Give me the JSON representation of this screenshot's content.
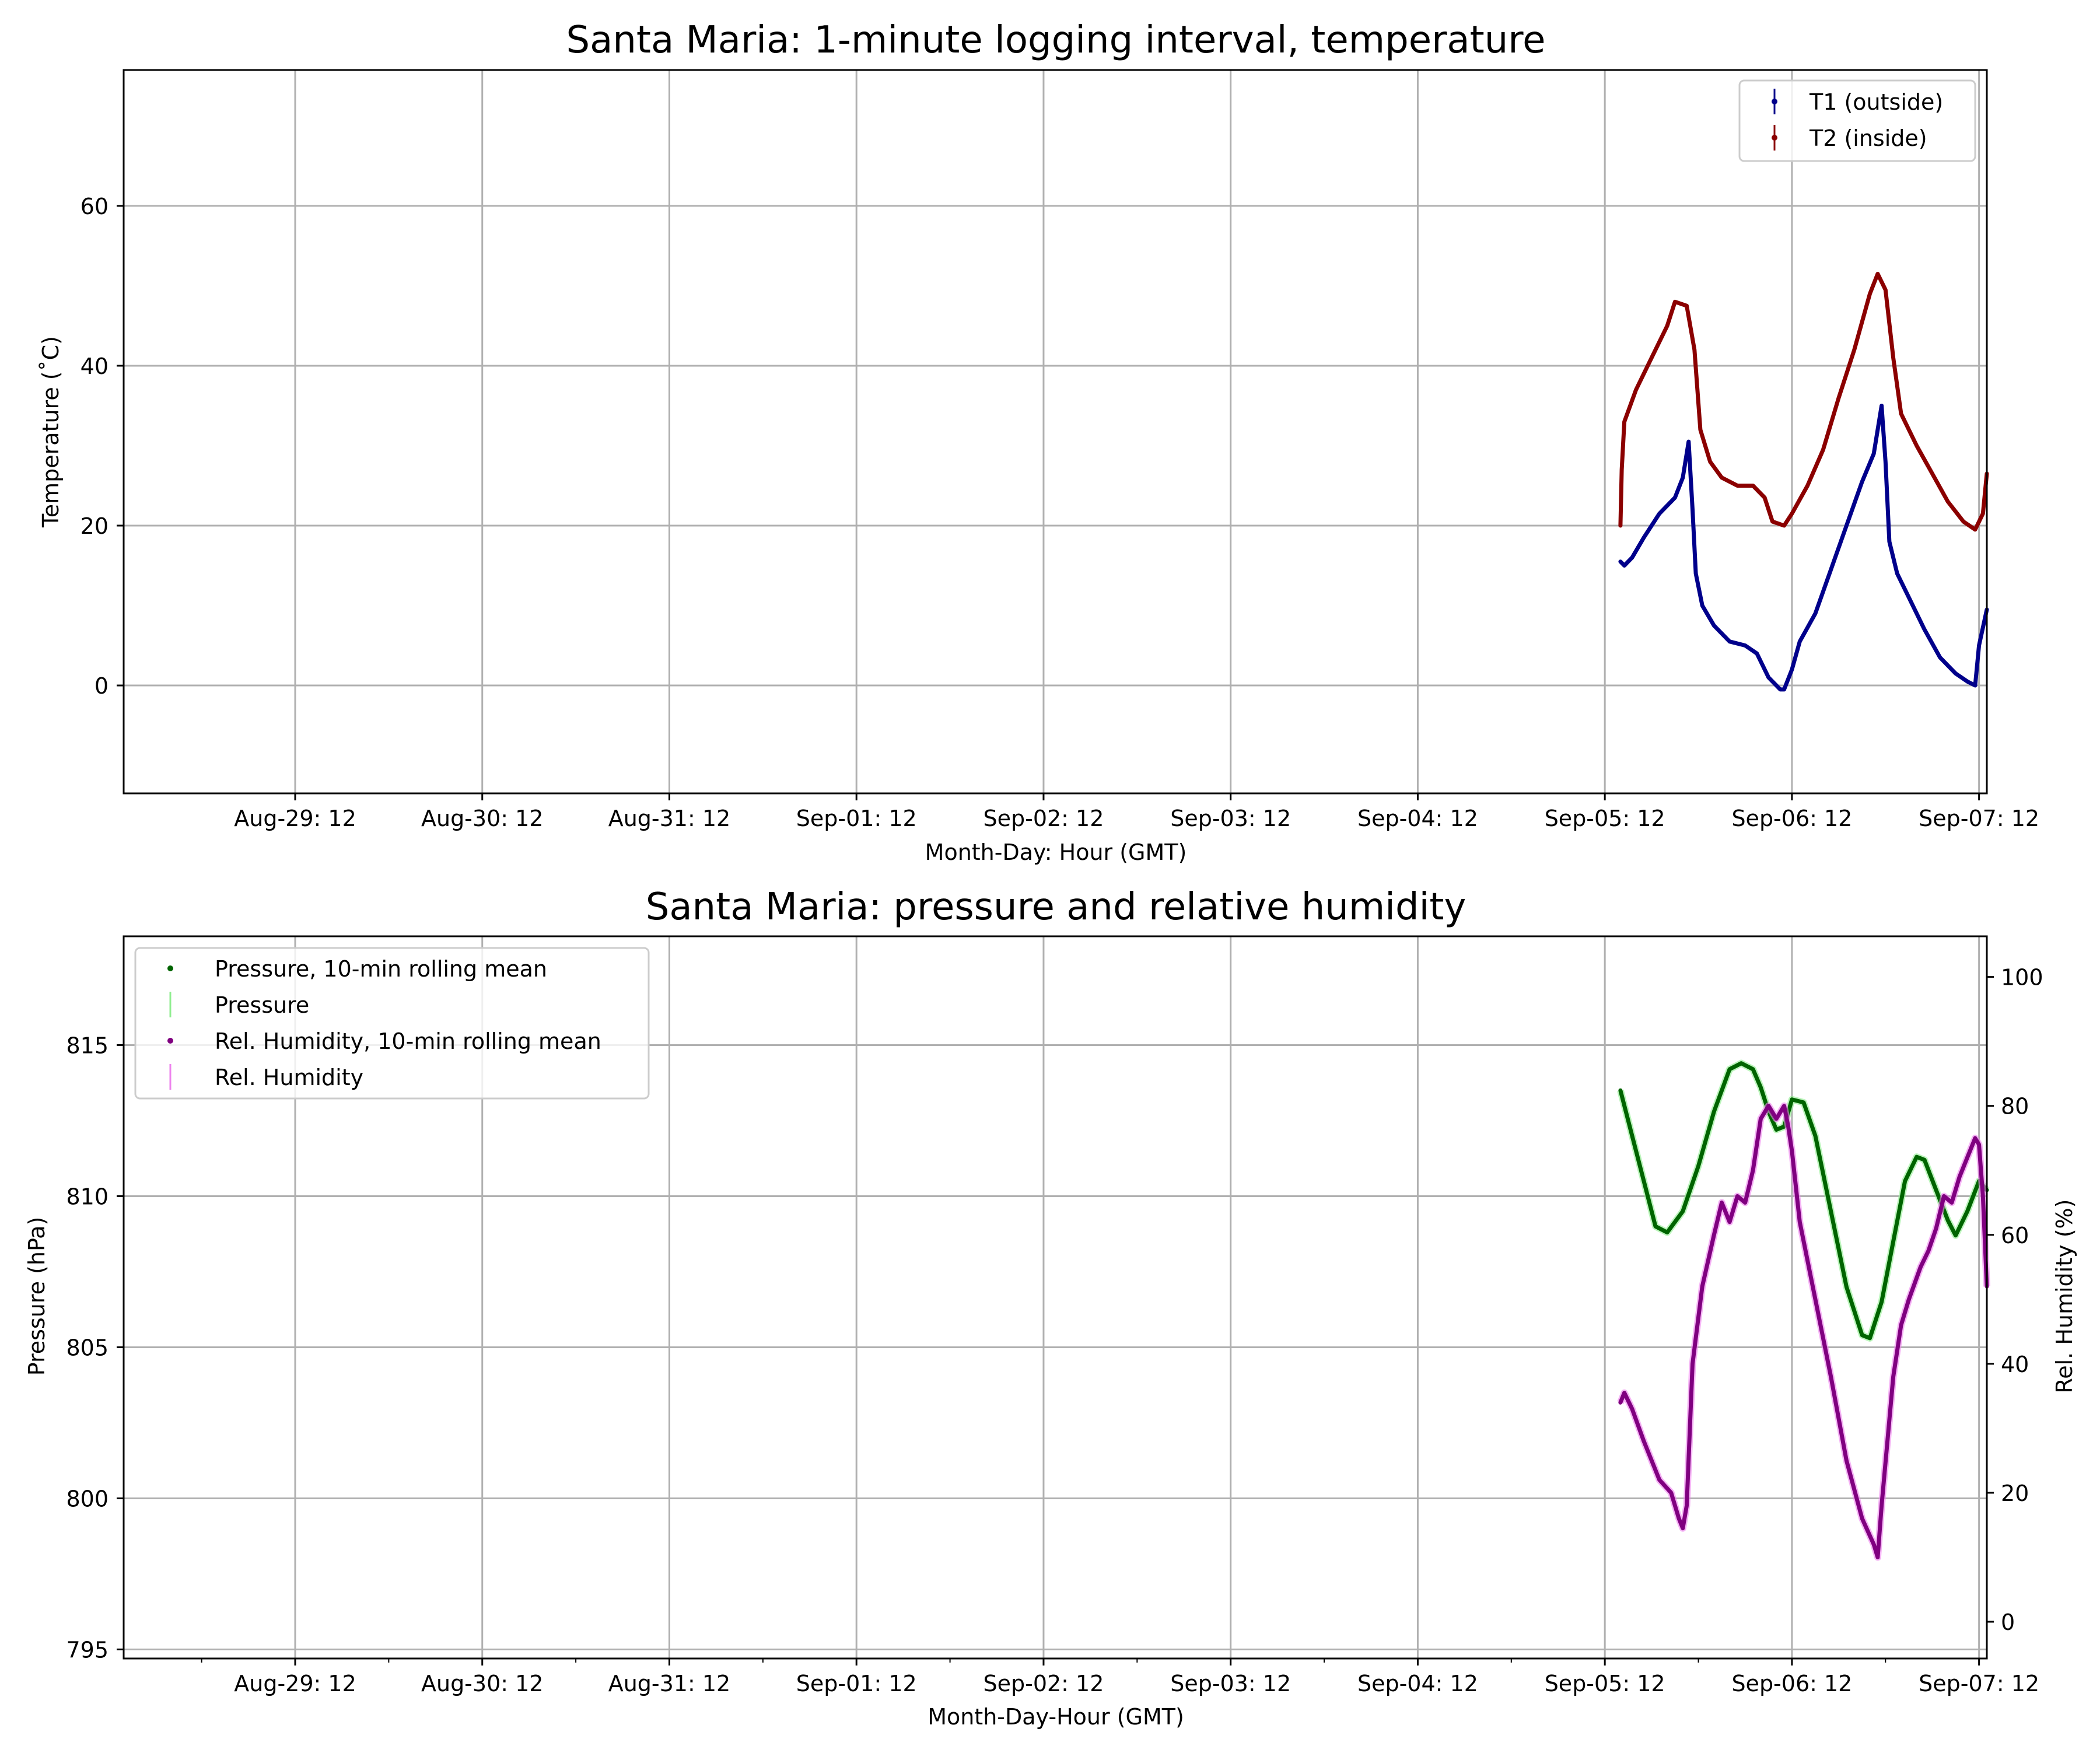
{
  "chart_data": [
    {
      "type": "line",
      "title": "Santa Maria: 1-minute logging interval, temperature",
      "xlabel": "Month-Day: Hour (GMT)",
      "ylabel": "Temperature ($^\\circ$C)",
      "ylabel_display": "Temperature (˚C)",
      "ylim": [
        -13.5,
        77
      ],
      "yticks": [
        0,
        20,
        40,
        60
      ],
      "xlim": [
        "2025-08-28 14:00",
        "2025-09-07 13:00"
      ],
      "xtick_labels": [
        "Aug-29: 12",
        "Aug-30: 12",
        "Aug-31: 12",
        "Sep-01: 12",
        "Sep-02: 12",
        "Sep-03: 12",
        "Sep-04: 12",
        "Sep-05: 12",
        "Sep-06: 12",
        "Sep-07: 12"
      ],
      "xticks": [
        "2025-08-29 12:00",
        "2025-08-30 12:00",
        "2025-08-31 12:00",
        "2025-09-01 12:00",
        "2025-09-02 12:00",
        "2025-09-03 12:00",
        "2025-09-04 12:00",
        "2025-09-05 12:00",
        "2025-09-06 12:00",
        "2025-09-07 12:00"
      ],
      "grid": true,
      "legend": "top-right",
      "series": [
        {
          "name": "T1 (outside)",
          "color": "#00008b",
          "axis": "left",
          "points": [
            [
              "2025-09-05 14:00",
              15.5
            ],
            [
              "2025-09-05 14:30",
              15.0
            ],
            [
              "2025-09-05 15:30",
              16.0
            ],
            [
              "2025-09-05 17:00",
              18.5
            ],
            [
              "2025-09-05 19:00",
              21.5
            ],
            [
              "2025-09-05 21:00",
              23.5
            ],
            [
              "2025-09-05 22:00",
              26.0
            ],
            [
              "2025-09-05 22:45",
              30.5
            ],
            [
              "2025-09-05 23:15",
              22.0
            ],
            [
              "2025-09-05 23:40",
              14.0
            ],
            [
              "2025-09-06 00:30",
              10.0
            ],
            [
              "2025-09-06 02:00",
              7.5
            ],
            [
              "2025-09-06 04:00",
              5.5
            ],
            [
              "2025-09-06 06:00",
              5.0
            ],
            [
              "2025-09-06 07:30",
              4.0
            ],
            [
              "2025-09-06 09:00",
              1.0
            ],
            [
              "2025-09-06 10:30",
              -0.5
            ],
            [
              "2025-09-06 11:00",
              -0.5
            ],
            [
              "2025-09-06 12:00",
              2.0
            ],
            [
              "2025-09-06 13:00",
              5.5
            ],
            [
              "2025-09-06 15:00",
              9.0
            ],
            [
              "2025-09-06 17:00",
              14.5
            ],
            [
              "2025-09-06 19:00",
              20.0
            ],
            [
              "2025-09-06 21:00",
              25.5
            ],
            [
              "2025-09-06 22:30",
              29.0
            ],
            [
              "2025-09-06 23:30",
              35.0
            ],
            [
              "2025-09-07 00:00",
              28.0
            ],
            [
              "2025-09-07 00:30",
              18.0
            ],
            [
              "2025-09-07 01:30",
              14.0
            ],
            [
              "2025-09-07 03:00",
              11.0
            ],
            [
              "2025-09-07 05:00",
              7.0
            ],
            [
              "2025-09-07 07:00",
              3.5
            ],
            [
              "2025-09-07 09:00",
              1.5
            ],
            [
              "2025-09-07 10:30",
              0.5
            ],
            [
              "2025-09-07 11:30",
              0.0
            ],
            [
              "2025-09-07 12:00",
              5.0
            ],
            [
              "2025-09-07 13:00",
              9.5
            ]
          ]
        },
        {
          "name": "T2 (inside)",
          "color": "#8b0000",
          "axis": "left",
          "points": [
            [
              "2025-09-05 14:00",
              20.0
            ],
            [
              "2025-09-05 14:10",
              27.0
            ],
            [
              "2025-09-05 14:30",
              33.0
            ],
            [
              "2025-09-05 16:00",
              37.0
            ],
            [
              "2025-09-05 18:00",
              41.0
            ],
            [
              "2025-09-05 20:00",
              45.0
            ],
            [
              "2025-09-05 21:00",
              48.0
            ],
            [
              "2025-09-05 22:30",
              47.5
            ],
            [
              "2025-09-05 23:30",
              42.0
            ],
            [
              "2025-09-06 00:15",
              32.0
            ],
            [
              "2025-09-06 01:30",
              28.0
            ],
            [
              "2025-09-06 03:00",
              26.0
            ],
            [
              "2025-09-06 05:00",
              25.0
            ],
            [
              "2025-09-06 07:00",
              25.0
            ],
            [
              "2025-09-06 08:30",
              23.5
            ],
            [
              "2025-09-06 09:30",
              20.5
            ],
            [
              "2025-09-06 11:00",
              20.0
            ],
            [
              "2025-09-06 12:00",
              21.5
            ],
            [
              "2025-09-06 14:00",
              25.0
            ],
            [
              "2025-09-06 16:00",
              29.5
            ],
            [
              "2025-09-06 18:00",
              36.0
            ],
            [
              "2025-09-06 20:00",
              42.0
            ],
            [
              "2025-09-06 22:00",
              49.0
            ],
            [
              "2025-09-06 23:00",
              51.5
            ],
            [
              "2025-09-07 00:00",
              49.5
            ],
            [
              "2025-09-07 01:00",
              41.0
            ],
            [
              "2025-09-07 02:00",
              34.0
            ],
            [
              "2025-09-07 04:00",
              30.0
            ],
            [
              "2025-09-07 06:00",
              26.5
            ],
            [
              "2025-09-07 08:00",
              23.0
            ],
            [
              "2025-09-07 10:00",
              20.5
            ],
            [
              "2025-09-07 11:30",
              19.5
            ],
            [
              "2025-09-07 12:30",
              21.5
            ],
            [
              "2025-09-07 13:00",
              26.5
            ]
          ]
        }
      ]
    },
    {
      "type": "line",
      "title": "Santa Maria: pressure and relative humidity",
      "xlabel": "Month-Day-Hour (GMT)",
      "ylabel": "Pressure (hPa)",
      "ylabel_right": "Rel. Humidity (%)",
      "ylim": [
        794.7,
        818.6
      ],
      "yticks": [
        795,
        800,
        805,
        810,
        815
      ],
      "ylim_right": [
        -5.7,
        106.3
      ],
      "yticks_right": [
        0,
        20,
        40,
        60,
        80,
        100
      ],
      "xlim": [
        "2025-08-28 14:00",
        "2025-09-07 13:00"
      ],
      "xtick_labels": [
        "Aug-29: 12",
        "Aug-30: 12",
        "Aug-31: 12",
        "Sep-01: 12",
        "Sep-02: 12",
        "Sep-03: 12",
        "Sep-04: 12",
        "Sep-05: 12",
        "Sep-06: 12",
        "Sep-07: 12"
      ],
      "xticks": [
        "2025-08-29 12:00",
        "2025-08-30 12:00",
        "2025-08-31 12:00",
        "2025-09-01 12:00",
        "2025-09-02 12:00",
        "2025-09-03 12:00",
        "2025-09-04 12:00",
        "2025-09-05 12:00",
        "2025-09-06 12:00",
        "2025-09-07 12:00"
      ],
      "grid": true,
      "legend": "top-left",
      "legend_entries": [
        {
          "label": "Pressure, 10-min rolling mean",
          "color": "#006400",
          "style": "dot"
        },
        {
          "label": "Pressure",
          "color": "#90ee90",
          "style": "bar"
        },
        {
          "label": "Rel. Humidity, 10-min rolling mean",
          "color": "#800080",
          "style": "dot"
        },
        {
          "label": "Rel. Humidity",
          "color": "#ee82ee",
          "style": "bar"
        }
      ],
      "series": [
        {
          "name": "Pressure, 10-min rolling mean",
          "color": "#006400",
          "axis": "left",
          "points": [
            [
              "2025-09-05 14:00",
              813.5
            ],
            [
              "2025-09-05 15:30",
              812.0
            ],
            [
              "2025-09-05 17:00",
              810.5
            ],
            [
              "2025-09-05 18:30",
              809.0
            ],
            [
              "2025-09-05 20:00",
              808.8
            ],
            [
              "2025-09-05 22:00",
              809.5
            ],
            [
              "2025-09-06 00:00",
              811.0
            ],
            [
              "2025-09-06 02:00",
              812.8
            ],
            [
              "2025-09-06 04:00",
              814.2
            ],
            [
              "2025-09-06 05:30",
              814.4
            ],
            [
              "2025-09-06 07:00",
              814.2
            ],
            [
              "2025-09-06 08:00",
              813.6
            ],
            [
              "2025-09-06 09:00",
              812.8
            ],
            [
              "2025-09-06 10:00",
              812.2
            ],
            [
              "2025-09-06 11:00",
              812.3
            ],
            [
              "2025-09-06 12:00",
              813.2
            ],
            [
              "2025-09-06 13:30",
              813.1
            ],
            [
              "2025-09-06 15:00",
              812.0
            ],
            [
              "2025-09-06 17:00",
              809.5
            ],
            [
              "2025-09-06 19:00",
              807.0
            ],
            [
              "2025-09-06 21:00",
              805.4
            ],
            [
              "2025-09-06 22:00",
              805.3
            ],
            [
              "2025-09-06 23:30",
              806.5
            ],
            [
              "2025-09-07 01:00",
              808.5
            ],
            [
              "2025-09-07 02:30",
              810.5
            ],
            [
              "2025-09-07 04:00",
              811.3
            ],
            [
              "2025-09-07 05:00",
              811.2
            ],
            [
              "2025-09-07 06:30",
              810.2
            ],
            [
              "2025-09-07 08:00",
              809.2
            ],
            [
              "2025-09-07 09:00",
              808.7
            ],
            [
              "2025-09-07 10:30",
              809.5
            ],
            [
              "2025-09-07 12:00",
              810.5
            ],
            [
              "2025-09-07 13:00",
              810.2
            ]
          ]
        },
        {
          "name": "Rel. Humidity, 10-min rolling mean",
          "color": "#800080",
          "axis": "right",
          "points": [
            [
              "2025-09-05 14:00",
              34.0
            ],
            [
              "2025-09-05 14:30",
              35.5
            ],
            [
              "2025-09-05 15:30",
              33.0
            ],
            [
              "2025-09-05 17:00",
              28.0
            ],
            [
              "2025-09-05 19:00",
              22.0
            ],
            [
              "2025-09-05 20:30",
              20.0
            ],
            [
              "2025-09-05 21:30",
              16.0
            ],
            [
              "2025-09-05 22:00",
              14.5
            ],
            [
              "2025-09-05 22:30",
              18.0
            ],
            [
              "2025-09-05 23:15",
              40.0
            ],
            [
              "2025-09-06 00:30",
              52.0
            ],
            [
              "2025-09-06 02:00",
              60.0
            ],
            [
              "2025-09-06 03:00",
              65.0
            ],
            [
              "2025-09-06 04:00",
              62.0
            ],
            [
              "2025-09-06 05:00",
              66.0
            ],
            [
              "2025-09-06 06:00",
              65.0
            ],
            [
              "2025-09-06 07:00",
              70.0
            ],
            [
              "2025-09-06 08:00",
              78.0
            ],
            [
              "2025-09-06 09:00",
              80.0
            ],
            [
              "2025-09-06 10:00",
              78.0
            ],
            [
              "2025-09-06 11:00",
              80.0
            ],
            [
              "2025-09-06 11:30",
              77.0
            ],
            [
              "2025-09-06 12:00",
              73.0
            ],
            [
              "2025-09-06 13:00",
              62.0
            ],
            [
              "2025-09-06 15:00",
              50.0
            ],
            [
              "2025-09-06 17:00",
              38.0
            ],
            [
              "2025-09-06 19:00",
              25.0
            ],
            [
              "2025-09-06 21:00",
              16.0
            ],
            [
              "2025-09-06 22:30",
              12.0
            ],
            [
              "2025-09-06 23:00",
              10.0
            ],
            [
              "2025-09-06 23:30",
              18.0
            ],
            [
              "2025-09-07 01:00",
              38.0
            ],
            [
              "2025-09-07 02:00",
              46.0
            ],
            [
              "2025-09-07 03:00",
              50.0
            ],
            [
              "2025-09-07 04:30",
              55.0
            ],
            [
              "2025-09-07 05:30",
              57.5
            ],
            [
              "2025-09-07 06:30",
              61.0
            ],
            [
              "2025-09-07 07:30",
              66.0
            ],
            [
              "2025-09-07 08:30",
              65.0
            ],
            [
              "2025-09-07 09:30",
              69.0
            ],
            [
              "2025-09-07 10:30",
              72.0
            ],
            [
              "2025-09-07 11:30",
              75.0
            ],
            [
              "2025-09-07 12:00",
              74.0
            ],
            [
              "2025-09-07 12:30",
              66.0
            ],
            [
              "2025-09-07 13:00",
              52.0
            ]
          ]
        }
      ]
    }
  ]
}
